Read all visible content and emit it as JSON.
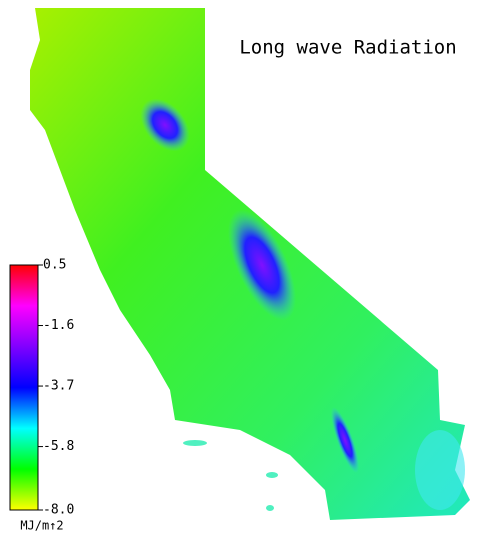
{
  "title": "Long wave Radiation",
  "colorbar": {
    "range": [
      -8,
      0.5
    ],
    "ticks": [
      0.5,
      -1.6,
      -3.7,
      -5.8,
      {
        "value": -8,
        "label": "-8.0"
      }
    ],
    "colors": [
      "#ffff00",
      "#00ff00",
      "#00ffff",
      "#0000ff",
      "#8000ff",
      "#ff00ff",
      "#ff0000"
    ],
    "unit": "MJ/m↑2"
  }
}
